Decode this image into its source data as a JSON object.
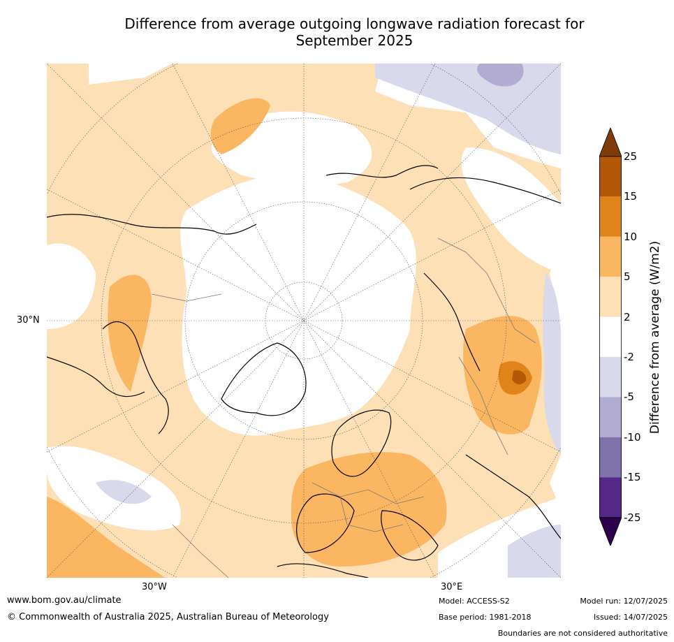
{
  "title": {
    "line1": "Difference from average outgoing longwave radiation forecast for",
    "line2": "September 2025"
  },
  "map": {
    "lat_label": "30°N",
    "lon_labels": {
      "west": "30°W",
      "east": "30°E"
    },
    "colors": {
      "pos_2_5": "#fde0b6",
      "pos_5_10": "#fbb661",
      "pos_10_15": "#e08419",
      "pos_15_25": "#b35807",
      "pos_gt25": "#7f3b08",
      "neg_2_5": "#d8d9ea",
      "neg_5_10": "#b2abd2",
      "neg_10_15": "#8073ac",
      "neg_15_25": "#542788",
      "neg_lt25": "#2d004b"
    }
  },
  "colorbar": {
    "label": "Difference from average (W/m2)",
    "ticks": [
      "25",
      "15",
      "10",
      "5",
      "2",
      "-2",
      "-5",
      "-10",
      "-15",
      "-25"
    ],
    "colors": [
      "#b35807",
      "#e08419",
      "#fbb661",
      "#fde0b6",
      "#ffffff",
      "#d8d9ea",
      "#b2abd2",
      "#8073ac",
      "#542788"
    ],
    "extend_top_color": "#7f3b08",
    "extend_bottom_color": "#2d004b"
  },
  "footer": {
    "website": "www.bom.gov.au/climate",
    "copyright": "© Commonwealth of Australia 2025, Australian Bureau of Meteorology",
    "model": "Model: ACCESS-S2",
    "base_period": "Base period: 1981-2018",
    "model_run": "Model run: 12/07/2025",
    "issued": "Issued: 14/07/2025",
    "disclaimer": "Boundaries are not considered authoritative"
  }
}
